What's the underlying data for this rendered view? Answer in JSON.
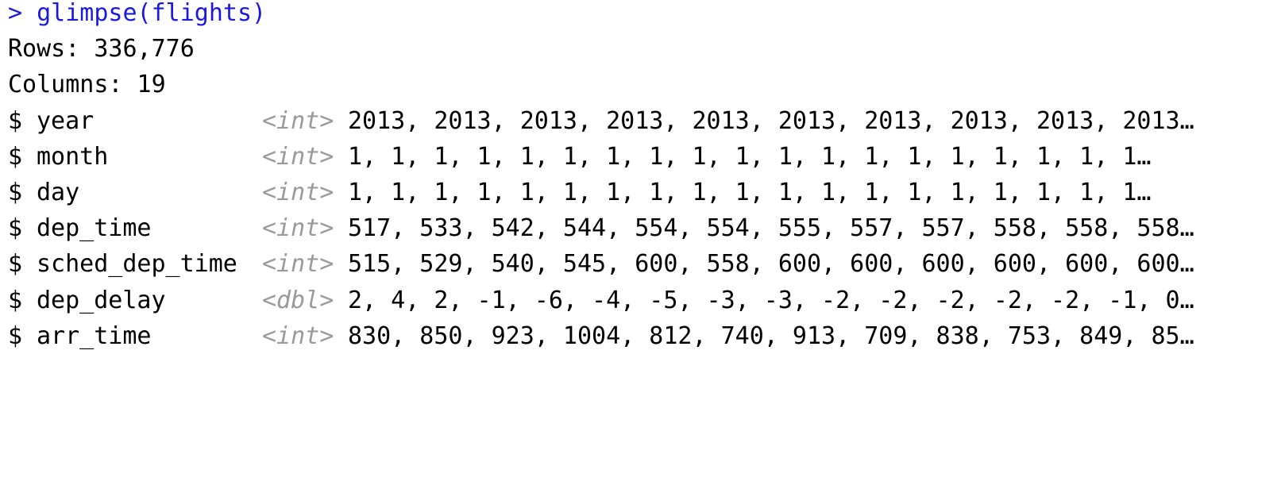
{
  "console": {
    "command": "> glimpse(flights)",
    "rows_line": "Rows: 336,776",
    "columns_line": "Columns: 19",
    "colors": {
      "command": "#1a1adb",
      "text": "#000000",
      "type": "#9a9a9a",
      "background": "#ffffff"
    },
    "columns": [
      {
        "prefix": "$",
        "name": "year",
        "type": "<int>",
        "values": "2013, 2013, 2013, 2013, 2013, 2013, 2013, 2013, 2013, 2013…"
      },
      {
        "prefix": "$",
        "name": "month",
        "type": "<int>",
        "values": "1, 1, 1, 1, 1, 1, 1, 1, 1, 1, 1, 1, 1, 1, 1, 1, 1, 1, 1…"
      },
      {
        "prefix": "$",
        "name": "day",
        "type": "<int>",
        "values": "1, 1, 1, 1, 1, 1, 1, 1, 1, 1, 1, 1, 1, 1, 1, 1, 1, 1, 1…"
      },
      {
        "prefix": "$",
        "name": "dep_time",
        "type": "<int>",
        "values": "517, 533, 542, 544, 554, 554, 555, 557, 557, 558, 558, 558…"
      },
      {
        "prefix": "$",
        "name": "sched_dep_time",
        "type": "<int>",
        "values": "515, 529, 540, 545, 600, 558, 600, 600, 600, 600, 600, 600…"
      },
      {
        "prefix": "$",
        "name": "dep_delay",
        "type": "<dbl>",
        "values": "2, 4, 2, -1, -6, -4, -5, -3, -3, -2, -2, -2, -2, -2, -1, 0…"
      },
      {
        "prefix": "$",
        "name": "arr_time",
        "type": "<int>",
        "values": "830, 850, 923, 1004, 812, 740, 913, 709, 838, 753, 849, 85…"
      }
    ]
  }
}
